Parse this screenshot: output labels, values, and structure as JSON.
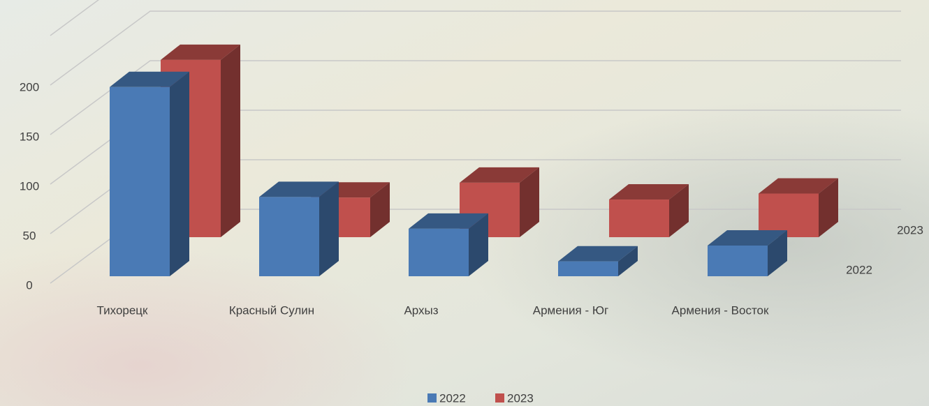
{
  "chart_data": {
    "type": "bar3d",
    "categories": [
      "Тихорецк",
      "Красный Сулин",
      "Архыз",
      "Армения - Юг",
      "Армения - Восток"
    ],
    "series": [
      {
        "name": "2022",
        "color": "#4a7ab5",
        "values": [
          191,
          80,
          48,
          15,
          31
        ]
      },
      {
        "name": "2023",
        "color": "#c0504d",
        "values": [
          179,
          40,
          55,
          38,
          44
        ]
      }
    ],
    "ylim": [
      0,
      250
    ],
    "yticks": [
      0,
      50,
      100,
      150,
      200
    ],
    "grid": true,
    "legend": "bottom"
  }
}
